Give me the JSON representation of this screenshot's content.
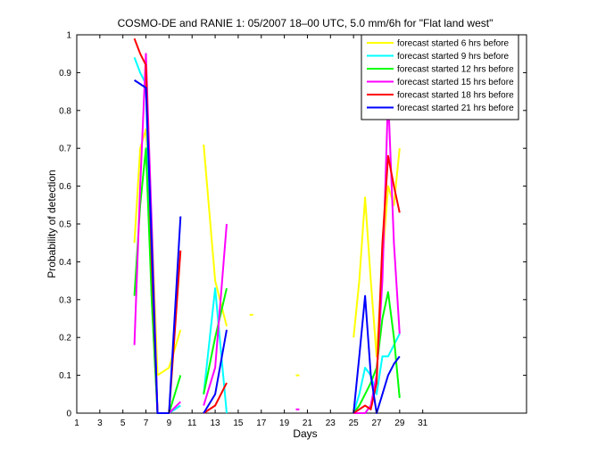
{
  "chart_data": {
    "type": "line",
    "title": "COSMO-DE and RANIE 1: 05/2007 18–00 UTC, 5.0 mm/6h for \"Flat land west\"",
    "xlabel": "Days",
    "ylabel": "Probability of detection",
    "xlim": [
      1,
      40
    ],
    "ylim": [
      0,
      1
    ],
    "xticks": [
      1,
      3,
      5,
      7,
      9,
      11,
      13,
      15,
      17,
      19,
      21,
      23,
      25,
      27,
      29,
      31
    ],
    "yticks": [
      0,
      0.1,
      0.2,
      0.3,
      0.4,
      0.5,
      0.6,
      0.7,
      0.8,
      0.9,
      1
    ],
    "ytick_labels": [
      "0",
      "0.1",
      "0.2",
      "0.3",
      "0.4",
      "0.5",
      "0.6",
      "0.7",
      "0.8",
      "0.9",
      "1"
    ],
    "grid": false,
    "legend_position": "top-right",
    "series": [
      {
        "name": "forecast started 6 hrs before",
        "color": "#ffff00",
        "segments": [
          [
            [
              6,
              0.45
            ],
            [
              6.5,
              0.7
            ],
            [
              7,
              0.75
            ],
            [
              7.5,
              0.5
            ],
            [
              8,
              0.1
            ],
            [
              9,
              0.12
            ],
            [
              10,
              0.22
            ]
          ],
          [
            [
              12,
              0.71
            ],
            [
              13,
              0.35
            ],
            [
              14,
              0.23
            ]
          ],
          [
            [
              16,
              0.26
            ],
            [
              16.3,
              0.26
            ]
          ],
          [
            [
              20,
              0.1
            ],
            [
              20.3,
              0.1
            ]
          ],
          [
            [
              25,
              0.2
            ],
            [
              25.5,
              0.35
            ],
            [
              26,
              0.57
            ],
            [
              26.5,
              0.35
            ],
            [
              27,
              0.15
            ],
            [
              27.5,
              0.4
            ],
            [
              28,
              0.6
            ],
            [
              28.5,
              0.55
            ],
            [
              29,
              0.7
            ]
          ]
        ]
      },
      {
        "name": "forecast started 9 hrs before",
        "color": "#00ffff",
        "segments": [
          [
            [
              6,
              0.94
            ],
            [
              6.5,
              0.9
            ],
            [
              7,
              0.87
            ],
            [
              7.5,
              0.3
            ],
            [
              8,
              0.0
            ],
            [
              9,
              0.0
            ],
            [
              10,
              0.02
            ]
          ],
          [
            [
              12,
              0.05
            ],
            [
              13,
              0.33
            ],
            [
              14,
              0.0
            ]
          ],
          [
            [
              25,
              0.0
            ],
            [
              25.5,
              0.05
            ],
            [
              26,
              0.12
            ],
            [
              26.5,
              0.1
            ],
            [
              27,
              0.05
            ],
            [
              27.5,
              0.15
            ],
            [
              28,
              0.15
            ],
            [
              28.5,
              0.18
            ],
            [
              29,
              0.21
            ]
          ]
        ]
      },
      {
        "name": "forecast started 12 hrs before",
        "color": "#00ff00",
        "segments": [
          [
            [
              6,
              0.31
            ],
            [
              6.5,
              0.55
            ],
            [
              7,
              0.7
            ],
            [
              7.5,
              0.3
            ],
            [
              8,
              0.0
            ],
            [
              9,
              0.0
            ],
            [
              10,
              0.1
            ]
          ],
          [
            [
              12,
              0.05
            ],
            [
              13,
              0.2
            ],
            [
              14,
              0.33
            ]
          ],
          [
            [
              25,
              0.0
            ],
            [
              25.5,
              0.02
            ],
            [
              26,
              0.05
            ],
            [
              26.5,
              0.08
            ],
            [
              27,
              0.12
            ],
            [
              27.5,
              0.25
            ],
            [
              28,
              0.32
            ],
            [
              28.5,
              0.2
            ],
            [
              29,
              0.04
            ]
          ]
        ]
      },
      {
        "name": "forecast started 15 hrs before",
        "color": "#ff00ff",
        "segments": [
          [
            [
              6,
              0.18
            ],
            [
              6.5,
              0.6
            ],
            [
              7,
              0.95
            ],
            [
              7.5,
              0.5
            ],
            [
              8,
              0.0
            ],
            [
              9,
              0.0
            ],
            [
              10,
              0.03
            ]
          ],
          [
            [
              12,
              0.02
            ],
            [
              13,
              0.12
            ],
            [
              14,
              0.5
            ]
          ],
          [
            [
              20,
              0.01
            ],
            [
              20.3,
              0.01
            ]
          ],
          [
            [
              25,
              0.0
            ],
            [
              25.5,
              0.0
            ],
            [
              26,
              0.0
            ],
            [
              26.5,
              0.02
            ],
            [
              27,
              0.1
            ],
            [
              27.5,
              0.35
            ],
            [
              28,
              0.84
            ],
            [
              28.5,
              0.45
            ],
            [
              29,
              0.21
            ]
          ]
        ]
      },
      {
        "name": "forecast started 18 hrs before",
        "color": "#ff0000",
        "segments": [
          [
            [
              6,
              0.99
            ],
            [
              6.5,
              0.95
            ],
            [
              7,
              0.92
            ],
            [
              7.5,
              0.4
            ],
            [
              8,
              0.0
            ],
            [
              9,
              0.0
            ],
            [
              10,
              0.43
            ]
          ],
          [
            [
              12,
              0.0
            ],
            [
              13,
              0.02
            ],
            [
              14,
              0.08
            ]
          ],
          [
            [
              25,
              0.0
            ],
            [
              25.5,
              0.01
            ],
            [
              26,
              0.02
            ],
            [
              26.5,
              0.01
            ],
            [
              27,
              0.08
            ],
            [
              27.5,
              0.45
            ],
            [
              28,
              0.68
            ],
            [
              28.5,
              0.6
            ],
            [
              29,
              0.53
            ]
          ]
        ]
      },
      {
        "name": "forecast started 21 hrs before",
        "color": "#0000ff",
        "segments": [
          [
            [
              6,
              0.88
            ],
            [
              6.5,
              0.87
            ],
            [
              7,
              0.86
            ],
            [
              7.5,
              0.45
            ],
            [
              8,
              0.0
            ],
            [
              9,
              0.0
            ],
            [
              10,
              0.52
            ]
          ],
          [
            [
              12,
              0.0
            ],
            [
              13,
              0.05
            ],
            [
              14,
              0.22
            ]
          ],
          [
            [
              25,
              0.0
            ],
            [
              25.5,
              0.15
            ],
            [
              26,
              0.31
            ],
            [
              26.5,
              0.1
            ],
            [
              27,
              0.0
            ],
            [
              27.5,
              0.05
            ],
            [
              28,
              0.1
            ],
            [
              28.5,
              0.13
            ],
            [
              29,
              0.15
            ]
          ]
        ]
      }
    ]
  }
}
